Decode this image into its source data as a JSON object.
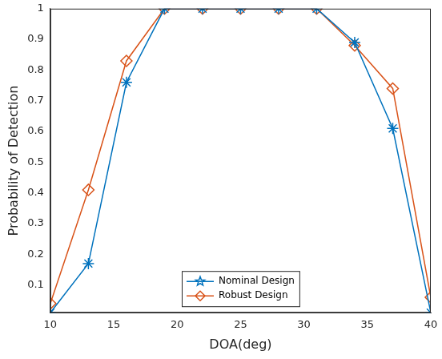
{
  "chart_data": {
    "type": "line",
    "x_label": "DOA(deg)",
    "y_label": "Probability of Detection",
    "x": [
      10,
      13,
      16,
      19,
      22,
      25,
      28,
      31,
      34,
      37,
      40
    ],
    "series": [
      {
        "name": "Nominal Design",
        "color": "#0072bd",
        "marker": "star",
        "line_style": "solid",
        "values": [
          0.01,
          0.17,
          0.76,
          1,
          1,
          1,
          1,
          1,
          0.89,
          0.61,
          0.01
        ]
      },
      {
        "name": "Robust Design",
        "color": "#d95319",
        "marker": "diamond",
        "line_style": "solid",
        "values": [
          0.04,
          0.41,
          0.83,
          1,
          1,
          1,
          1,
          1,
          0.88,
          0.74,
          0.06
        ]
      }
    ],
    "xlim": [
      10,
      40
    ],
    "xticks": [
      10,
      15,
      20,
      25,
      30,
      35,
      40
    ],
    "ylim": [
      0.01,
      1
    ],
    "yticks": [
      0.1,
      0.2,
      0.3,
      0.4,
      0.5,
      0.6,
      0.7,
      0.8,
      0.9,
      1
    ],
    "grid": false,
    "legend": "lower center"
  }
}
